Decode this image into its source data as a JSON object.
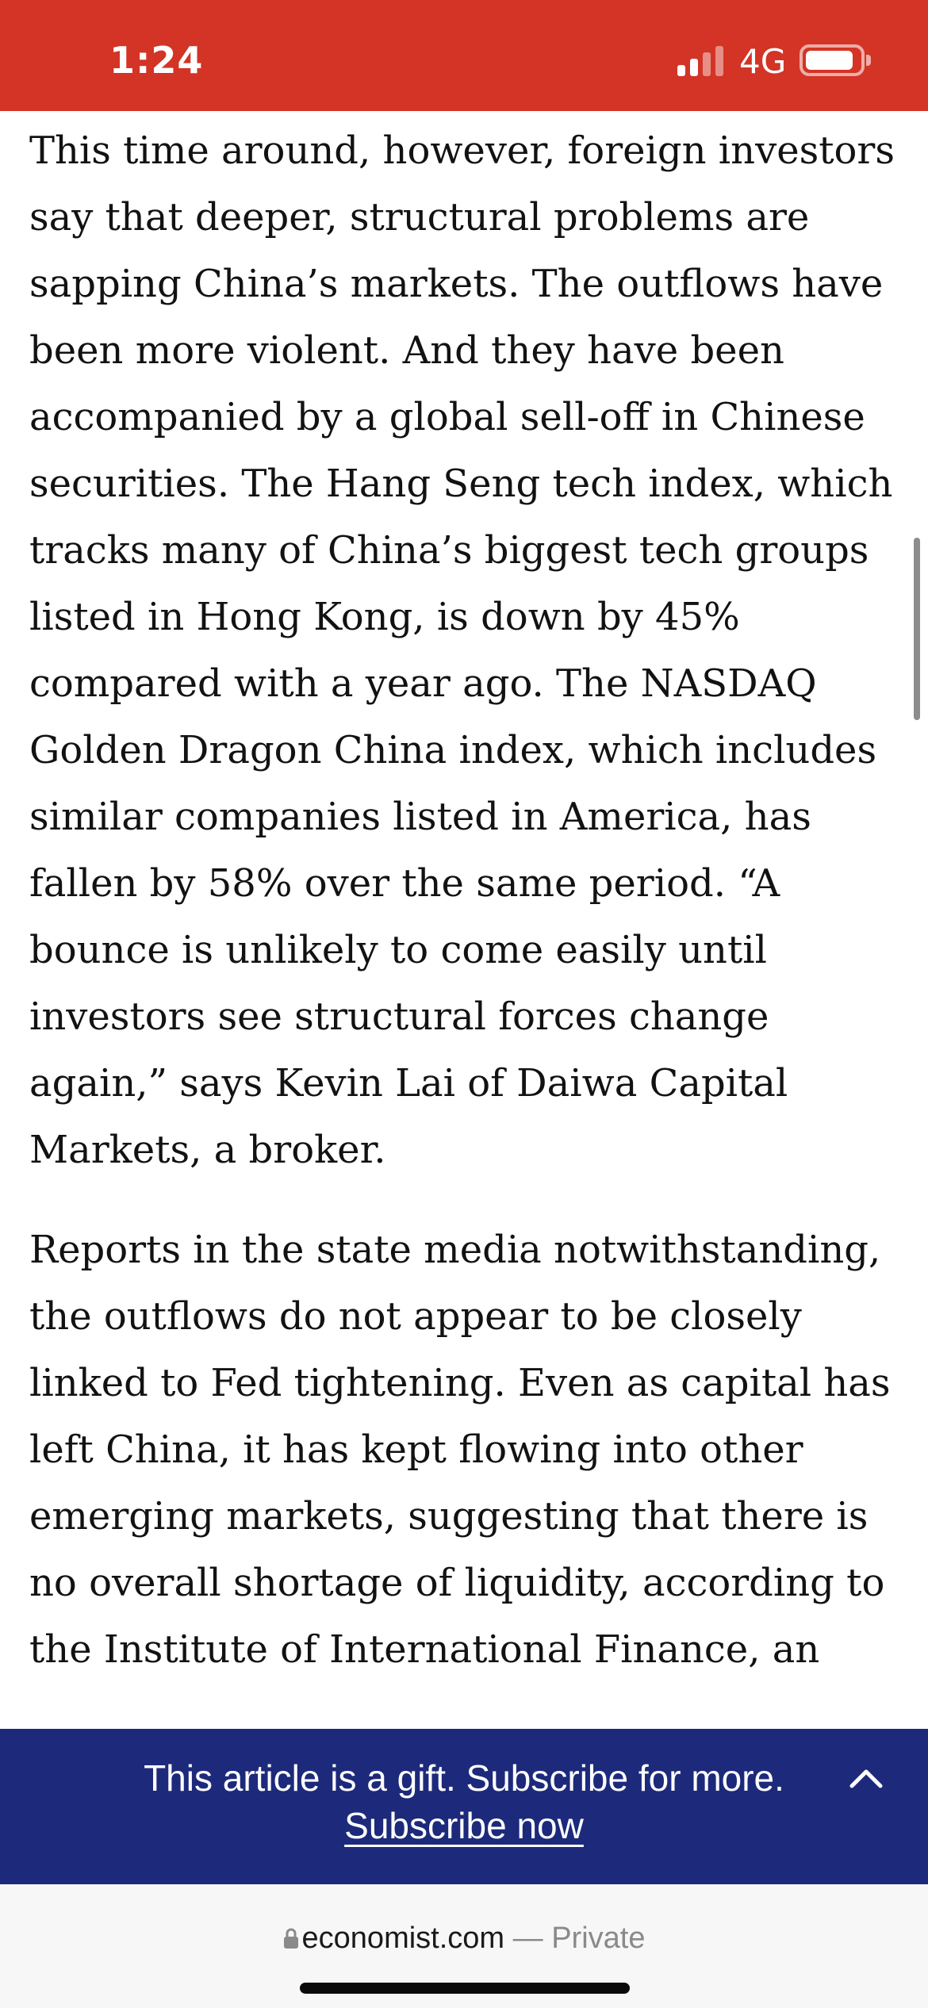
{
  "status_bar": {
    "time": "1:24",
    "network": "4G",
    "signal_bars_active": 2,
    "signal_bars_total": 4,
    "battery_level": 0.9,
    "background_color": "#d33425"
  },
  "article": {
    "paragraphs": [
      "This time around, however, foreign investors say that deeper, structural problems are sapping China’s markets. The outflows have been more violent. And they have been accompanied by a global sell-off in Chinese securities. The Hang Seng tech index, which tracks many of China’s biggest tech groups listed in Hong Kong, is down by 45% compared with a year ago. The NASDAQ Golden Dragon China index, which includes similar companies listed in America, has fallen by 58% over the same period. “A bounce is unlikely to come easily until investors see structural forces change again,” says Kevin Lai of Daiwa Capital Markets, a broker.",
      "Reports in the state media notwithstanding, the outflows do not appear to be closely linked to Fed tightening. Even as capital has left China, it has kept flowing into other emerging markets, suggesting that there is no overall shortage of liquidity, according to the Institute of International Finance, an"
    ]
  },
  "gift_banner": {
    "message": "This article is a gift. Subscribe for more.",
    "link_label": "Subscribe now",
    "background_color": "#1d2a7b",
    "expand_icon": "chevron-up-icon"
  },
  "browser": {
    "domain": "economist.com",
    "mode_label": "— Private",
    "lock_icon": "lock-icon"
  }
}
